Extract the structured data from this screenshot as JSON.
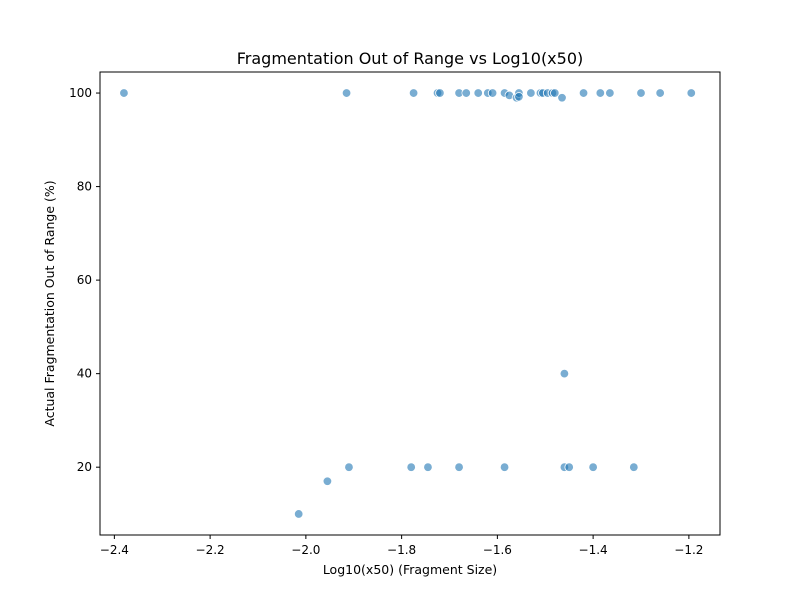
{
  "chart_data": {
    "type": "scatter",
    "title": "Fragmentation Out of Range vs Log10(x50)",
    "xlabel": "Log10(x50) (Fragment Size)",
    "ylabel": "Actual Fragmentation Out of Range (%)",
    "xlim": [
      -2.43,
      -1.135
    ],
    "ylim": [
      5.5,
      104.5
    ],
    "xticks": [
      -2.4,
      -2.2,
      -2.0,
      -1.8,
      -1.6,
      -1.4,
      -1.2
    ],
    "xtick_labels": [
      "−2.4",
      "−2.2",
      "−2.0",
      "−1.8",
      "−1.6",
      "−1.4",
      "−1.2"
    ],
    "yticks": [
      20,
      40,
      60,
      80,
      100
    ],
    "ytick_labels": [
      "20",
      "40",
      "60",
      "80",
      "100"
    ],
    "grid": false,
    "color": "#1f77b4",
    "points": [
      {
        "x": -2.38,
        "y": 100
      },
      {
        "x": -1.915,
        "y": 100
      },
      {
        "x": -1.775,
        "y": 100
      },
      {
        "x": -1.725,
        "y": 100
      },
      {
        "x": -1.72,
        "y": 100
      },
      {
        "x": -1.68,
        "y": 100
      },
      {
        "x": -1.665,
        "y": 100
      },
      {
        "x": -1.64,
        "y": 100
      },
      {
        "x": -1.62,
        "y": 100
      },
      {
        "x": -1.61,
        "y": 100
      },
      {
        "x": -1.585,
        "y": 100
      },
      {
        "x": -1.575,
        "y": 99.5
      },
      {
        "x": -1.56,
        "y": 99
      },
      {
        "x": -1.555,
        "y": 100
      },
      {
        "x": -1.555,
        "y": 99.2
      },
      {
        "x": -1.53,
        "y": 100
      },
      {
        "x": -1.51,
        "y": 100
      },
      {
        "x": -1.505,
        "y": 100
      },
      {
        "x": -1.495,
        "y": 100
      },
      {
        "x": -1.485,
        "y": 100
      },
      {
        "x": -1.48,
        "y": 100
      },
      {
        "x": -1.465,
        "y": 99
      },
      {
        "x": -1.42,
        "y": 100
      },
      {
        "x": -1.385,
        "y": 100
      },
      {
        "x": -1.365,
        "y": 100
      },
      {
        "x": -1.3,
        "y": 100
      },
      {
        "x": -1.26,
        "y": 100
      },
      {
        "x": -1.195,
        "y": 100
      },
      {
        "x": -1.46,
        "y": 40
      },
      {
        "x": -1.91,
        "y": 20
      },
      {
        "x": -1.78,
        "y": 20
      },
      {
        "x": -1.745,
        "y": 20
      },
      {
        "x": -1.68,
        "y": 20
      },
      {
        "x": -1.585,
        "y": 20
      },
      {
        "x": -1.46,
        "y": 20
      },
      {
        "x": -1.45,
        "y": 20
      },
      {
        "x": -1.4,
        "y": 20
      },
      {
        "x": -1.315,
        "y": 20
      },
      {
        "x": -1.955,
        "y": 17
      },
      {
        "x": -2.015,
        "y": 10
      }
    ]
  }
}
